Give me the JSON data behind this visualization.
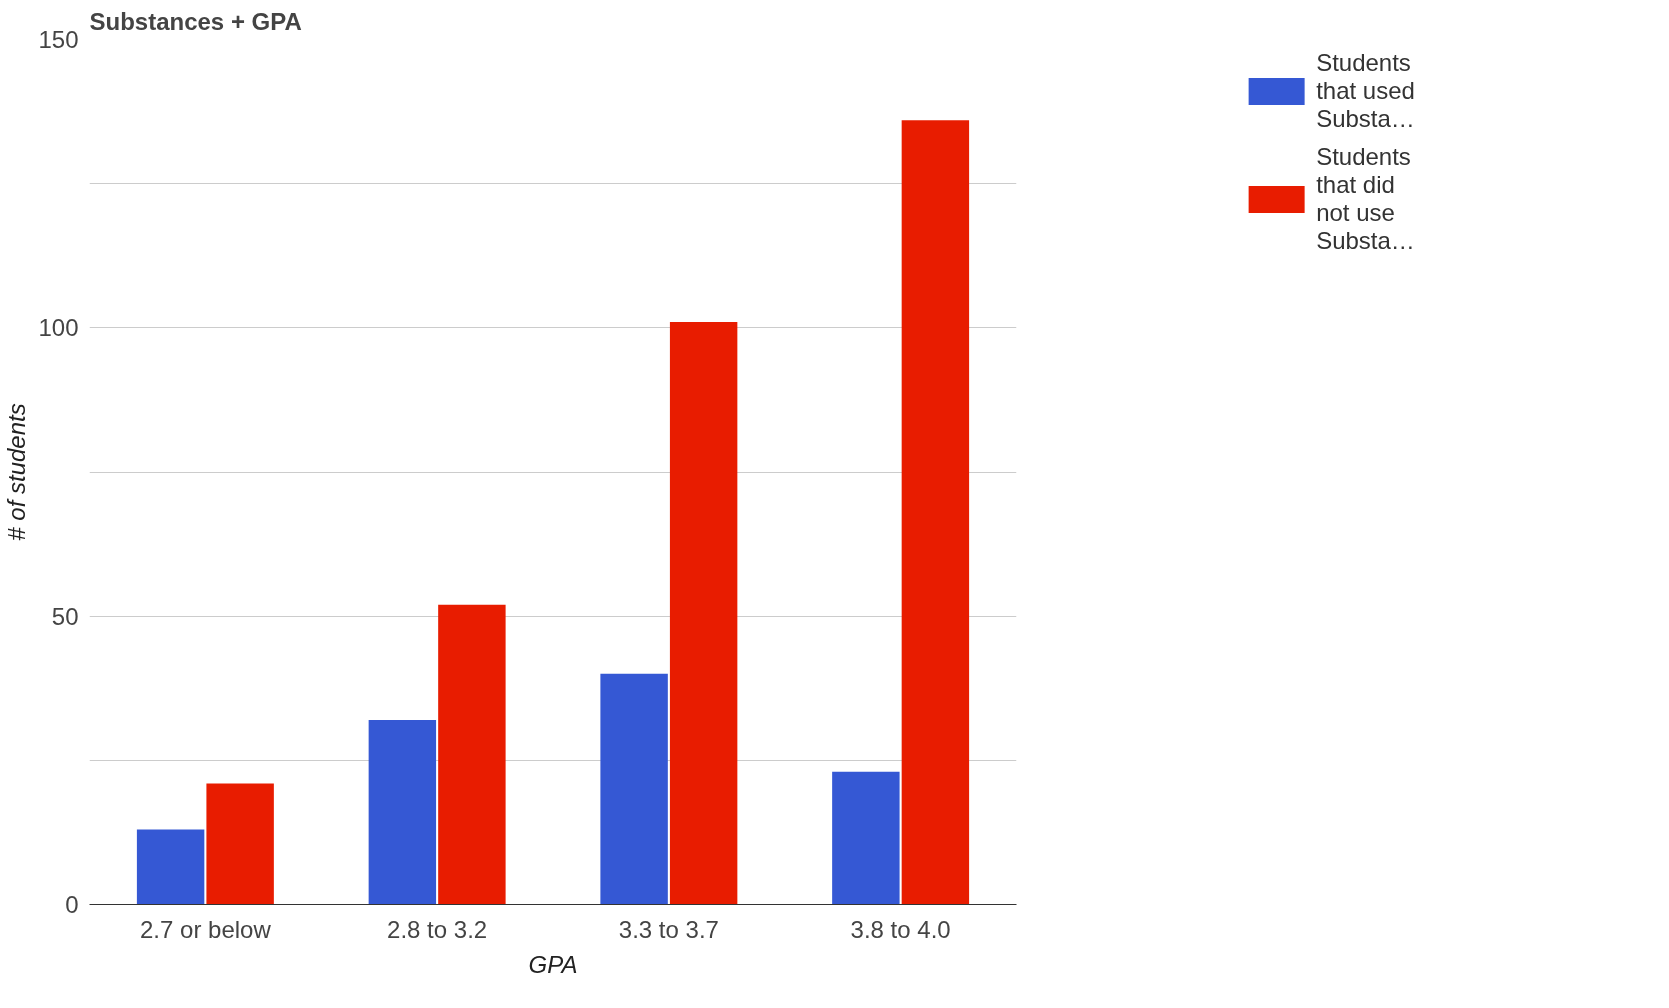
{
  "chart_data": {
    "type": "bar",
    "title": "Substances + GPA",
    "xlabel": "GPA",
    "ylabel": "# of students",
    "categories": [
      "2.7 or below",
      "2.8 to 3.2",
      "3.3 to 3.7",
      "3.8 to 4.0"
    ],
    "series": [
      {
        "name": "Students that used Substa…",
        "color": "#3558d4",
        "values": [
          13,
          32,
          40,
          23
        ]
      },
      {
        "name": "Students that did not use Substa…",
        "color": "#e81c00",
        "values": [
          21,
          52,
          101,
          136
        ]
      }
    ],
    "ylim": [
      0,
      150
    ],
    "yticks": [
      0,
      {
        "value": 25,
        "label": null
      },
      50,
      {
        "value": 75,
        "label": null
      },
      100,
      {
        "value": 125,
        "label": null
      },
      150
    ],
    "grid": "y",
    "legend": "top right"
  }
}
